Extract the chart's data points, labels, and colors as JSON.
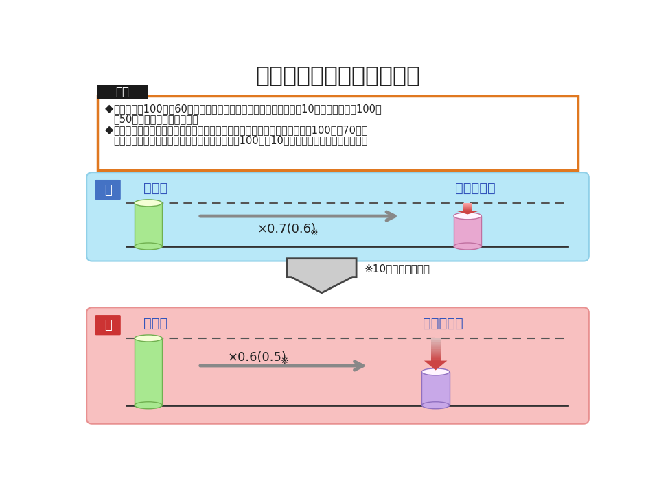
{
  "title": "新規収載後発医薬品の薬価",
  "title_fontsize": 24,
  "bg_color": "#ffffff",
  "taiou_label": "対応",
  "taiou_bg": "#1a1a1a",
  "taiou_text_color": "#ffffff",
  "box_border_color": "#e07820",
  "bullet1_line1": "「先発品の100分の60を乗じた額（内用薬については、銘柄数が10を超える場合は100分",
  "bullet1_line2": "の50を乗じた額）」とする。",
  "bullet2_line1": "なお、バイオ後続品については従前どおりとすることとする。（先発品の100分の70を乗",
  "bullet2_line2": "じた額。臨床試験の充実度に応じて、当該額に100分の10を上限として乗じた額を加算）",
  "old_label": "旧",
  "old_label_bg": "#4472c4",
  "old_box_bg": "#b8e8f8",
  "old_box_edge": "#90d0e8",
  "old_senpaku": "先発品",
  "old_kigo": "新規後発品",
  "old_bar_left_color": "#a8e890",
  "old_bar_right_color": "#e8a8d0",
  "old_arrow_text": "×0.7(0.6)",
  "old_arrow_note": "※",
  "new_label": "新",
  "new_label_bg": "#cc3333",
  "new_box_bg": "#f8c0c0",
  "new_box_edge": "#e89090",
  "new_senpaku": "先発品",
  "new_kigo": "新規後発品",
  "new_bar_left_color": "#a8e890",
  "new_bar_right_color": "#c8a8e8",
  "new_arrow_text": "×0.6(0.5)",
  "new_arrow_note": "※",
  "note_text": "※10品目超えの場合",
  "text_color_blue": "#3355bb",
  "text_color_dark": "#222222",
  "arrow_color": "#888888",
  "down_arrow_color_old": "#cc4444",
  "down_arrow_color_new": "#cc4444"
}
